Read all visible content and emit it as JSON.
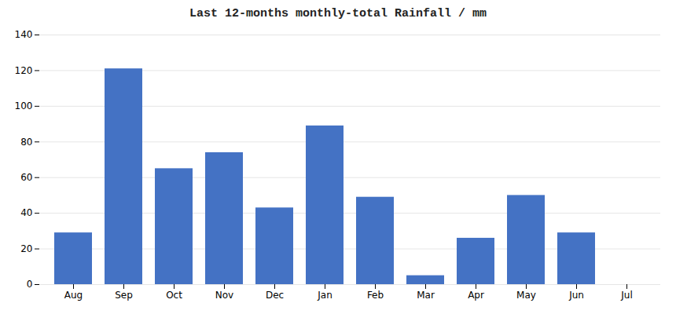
{
  "chart_data": {
    "type": "bar",
    "title": "Last 12-months monthly-total Rainfall / mm",
    "categories": [
      "Aug",
      "Sep",
      "Oct",
      "Nov",
      "Dec",
      "Jan",
      "Feb",
      "Mar",
      "Apr",
      "May",
      "Jun",
      "Jul"
    ],
    "values": [
      29,
      121,
      65,
      74,
      43,
      89,
      49,
      5,
      26,
      50,
      29,
      0
    ],
    "color": "#4472c4",
    "ylim": [
      0,
      140
    ],
    "yticks": [
      0,
      20,
      40,
      60,
      80,
      100,
      120,
      140
    ],
    "grid": true
  }
}
